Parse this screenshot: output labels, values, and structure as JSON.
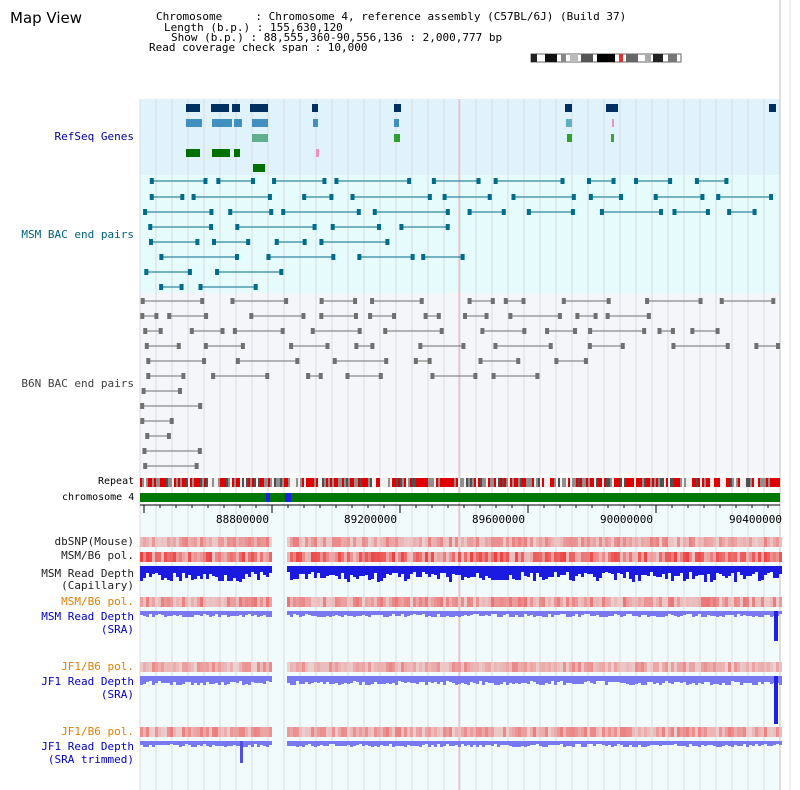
{
  "window": {
    "title": "Map View"
  },
  "header": {
    "chromosome_line": "Chromosome     : Chromosome 4, reference assembly (C57BL/6J) (Build 37)",
    "length_line": "Length (b.p.) : 155,630,120",
    "show_line": "Show (b.p.) : 88,555,360-90,556,136 : 2,000,777 bp",
    "coverage_line": "Read coverage check span : 10,000"
  },
  "tracks": {
    "refseq": "RefSeq Genes",
    "msm_bac": "MSM BAC end pairs",
    "b6n_bac": "B6N BAC end pairs",
    "repeat": "Repeat",
    "chromosome": "chromosome 4",
    "dbsnp": "dbSNP(Mouse)",
    "msm_b6_pol_1": "MSM/B6 pol.",
    "msm_read_depth_cap_1": "MSM Read Depth",
    "msm_read_depth_cap_2": "(Capillary)",
    "msm_b6_pol_2": "MSM/B6 pol.",
    "msm_read_depth_sra_1": "MSM Read Depth",
    "msm_read_depth_sra_2": "(SRA)",
    "jf1_b6_pol_1": "JF1/B6 pol.",
    "jf1_read_depth_sra_1": "JF1 Read Depth",
    "jf1_read_depth_sra_2": "(SRA)",
    "jf1_b6_pol_2": "JF1/B6 pol.",
    "jf1_read_depth_trim_1": "JF1 Read Depth",
    "jf1_read_depth_trim_2": "(SRA trimmed)"
  },
  "axis": {
    "ticks": [
      "88800000",
      "89200000",
      "89600000",
      "90000000",
      "90400000"
    ]
  },
  "colors": {
    "refseq_bg": "#e0f2fb",
    "bac_bg": "#e6fbfb",
    "b6n_bg": "#f5f6fa",
    "lower_bg": "#f2fbfb",
    "chrom_green": "#007800",
    "depth_blue": "#1a1ae0",
    "depth_light": "#7878f0",
    "pol_red": "#e82020"
  }
}
